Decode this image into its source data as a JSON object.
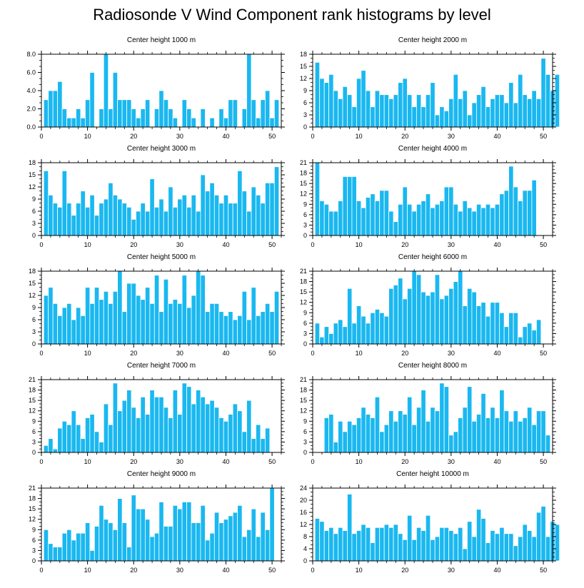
{
  "page": {
    "title": "Radiosonde V Wind Component rank histograms by level"
  },
  "colors": {
    "bar": "#1ab8f0",
    "bar_stroke": "#ffffff",
    "axis": "#000000"
  },
  "chart_data": [
    {
      "type": "bar",
      "title": "Center height 1000 m",
      "xlim": [
        0,
        52
      ],
      "ylim": [
        0,
        8
      ],
      "xticks": [
        0,
        10,
        20,
        30,
        40,
        50
      ],
      "yticks": [
        0,
        2,
        4,
        6,
        8
      ],
      "ytick_labels": [
        "0.0",
        "2.0",
        "4.0",
        "6.0",
        "8.0"
      ],
      "values": [
        3,
        4,
        4,
        5,
        2,
        1,
        1,
        2,
        1,
        3,
        6,
        0,
        2,
        8,
        2,
        6,
        3,
        3,
        3,
        2,
        1,
        2,
        3,
        0,
        2,
        4,
        3,
        2,
        1,
        0,
        3,
        2,
        1,
        0,
        2,
        0,
        1,
        0,
        2,
        1,
        3,
        3,
        0,
        2,
        8,
        3,
        1,
        3,
        4,
        1,
        3
      ]
    },
    {
      "type": "bar",
      "title": "Center height 2000 m",
      "xlim": [
        0,
        52
      ],
      "ylim": [
        0,
        18
      ],
      "xticks": [
        0,
        10,
        20,
        30,
        40,
        50
      ],
      "yticks": [
        0,
        3,
        6,
        9,
        12,
        15,
        18
      ],
      "ytick_labels": [
        "0",
        "3",
        "6",
        "9",
        "12",
        "15",
        "18"
      ],
      "values": [
        16,
        12,
        11,
        13,
        9,
        7,
        10,
        8,
        5,
        12,
        14,
        9,
        5,
        9,
        8,
        8,
        7,
        8,
        11,
        12,
        8,
        5,
        8,
        5,
        8,
        11,
        3,
        5,
        4,
        7,
        13,
        7,
        9,
        3,
        6,
        8,
        10,
        5,
        7,
        8,
        8,
        6,
        11,
        6,
        13,
        8,
        7,
        9,
        7,
        17,
        13,
        9,
        13
      ]
    },
    {
      "type": "bar",
      "title": "Center height 3000 m",
      "xlim": [
        0,
        52
      ],
      "ylim": [
        0,
        18
      ],
      "xticks": [
        0,
        10,
        20,
        30,
        40,
        50
      ],
      "yticks": [
        0,
        3,
        6,
        9,
        12,
        15,
        18
      ],
      "ytick_labels": [
        "0",
        "3",
        "6",
        "9",
        "12",
        "15",
        "18"
      ],
      "values": [
        16,
        10,
        8,
        7,
        16,
        8,
        5,
        8,
        11,
        7,
        10,
        5,
        8,
        9,
        13,
        10,
        9,
        8,
        7,
        4,
        6,
        8,
        6,
        14,
        7,
        9,
        6,
        12,
        7,
        9,
        10,
        7,
        10,
        6,
        15,
        11,
        13,
        10,
        8,
        10,
        8,
        8,
        16,
        11,
        6,
        12,
        10,
        8,
        13,
        13,
        17
      ]
    },
    {
      "type": "bar",
      "title": "Center height 4000 m",
      "xlim": [
        0,
        52
      ],
      "ylim": [
        0,
        21
      ],
      "xticks": [
        0,
        10,
        20,
        30,
        40,
        50
      ],
      "yticks": [
        0,
        3,
        6,
        9,
        12,
        15,
        18,
        21
      ],
      "ytick_labels": [
        "0",
        "3",
        "6",
        "9",
        "12",
        "15",
        "18",
        "21"
      ],
      "values": [
        21,
        10,
        9,
        7,
        7,
        10,
        17,
        17,
        17,
        10,
        8,
        11,
        12,
        10,
        13,
        13,
        7,
        4,
        9,
        14,
        9,
        7,
        9,
        10,
        12,
        8,
        9,
        10,
        14,
        14,
        9,
        7,
        10,
        8,
        7,
        9,
        8,
        9,
        8,
        9,
        12,
        13,
        20,
        14,
        10,
        13,
        13,
        16
      ]
    },
    {
      "type": "bar",
      "title": "Center height 5000 m",
      "xlim": [
        0,
        52
      ],
      "ylim": [
        0,
        18
      ],
      "xticks": [
        0,
        10,
        20,
        30,
        40,
        50
      ],
      "yticks": [
        0,
        3,
        6,
        9,
        12,
        15,
        18
      ],
      "ytick_labels": [
        "0",
        "3",
        "6",
        "9",
        "12",
        "15",
        "18"
      ],
      "values": [
        12,
        14,
        10,
        7,
        9,
        10,
        6,
        9,
        7,
        14,
        10,
        14,
        11,
        13,
        10,
        13,
        18,
        8,
        15,
        15,
        12,
        11,
        14,
        10,
        17,
        8,
        16,
        10,
        11,
        10,
        17,
        9,
        12,
        18,
        17,
        8,
        10,
        10,
        8,
        7,
        8,
        6,
        7,
        13,
        6,
        14,
        7,
        8,
        10,
        8,
        13
      ]
    },
    {
      "type": "bar",
      "title": "Center height 6000 m",
      "xlim": [
        0,
        52
      ],
      "ylim": [
        0,
        21
      ],
      "xticks": [
        0,
        10,
        20,
        30,
        40,
        50
      ],
      "yticks": [
        0,
        3,
        6,
        9,
        12,
        15,
        18,
        21
      ],
      "ytick_labels": [
        "0",
        "3",
        "6",
        "9",
        "12",
        "15",
        "18",
        "21"
      ],
      "values": [
        6,
        2,
        5,
        3,
        6,
        7,
        5,
        16,
        6,
        11,
        8,
        6,
        9,
        10,
        9,
        8,
        16,
        17,
        19,
        13,
        16,
        21,
        20,
        15,
        14,
        15,
        20,
        13,
        14,
        16,
        18,
        21,
        11,
        16,
        15,
        11,
        12,
        8,
        12,
        12,
        9,
        5,
        9,
        9,
        2,
        5,
        6,
        4,
        7
      ]
    },
    {
      "type": "bar",
      "title": "Center height 7000 m",
      "xlim": [
        0,
        52
      ],
      "ylim": [
        0,
        21
      ],
      "xticks": [
        0,
        10,
        20,
        30,
        40,
        50
      ],
      "yticks": [
        0,
        3,
        6,
        9,
        12,
        15,
        18,
        21
      ],
      "ytick_labels": [
        "0",
        "3",
        "6",
        "9",
        "12",
        "15",
        "18",
        "21"
      ],
      "values": [
        2,
        4,
        1,
        7,
        9,
        8,
        12,
        8,
        4,
        10,
        11,
        6,
        3,
        14,
        8,
        20,
        12,
        15,
        18,
        13,
        10,
        16,
        11,
        18,
        16,
        16,
        13,
        10,
        18,
        11,
        20,
        19,
        14,
        18,
        16,
        14,
        15,
        13,
        10,
        9,
        11,
        14,
        12,
        6,
        15,
        4,
        8,
        4,
        7
      ]
    },
    {
      "type": "bar",
      "title": "Center height 8000 m",
      "xlim": [
        0,
        52
      ],
      "ylim": [
        0,
        21
      ],
      "xticks": [
        0,
        10,
        20,
        30,
        40,
        50
      ],
      "yticks": [
        0,
        3,
        6,
        9,
        12,
        15,
        18,
        21
      ],
      "ytick_labels": [
        "0",
        "3",
        "6",
        "9",
        "12",
        "15",
        "18",
        "21"
      ],
      "values": [
        0,
        0,
        10,
        11,
        3,
        9,
        6,
        9,
        8,
        10,
        13,
        11,
        10,
        16,
        6,
        8,
        12,
        9,
        12,
        11,
        16,
        8,
        13,
        18,
        9,
        13,
        12,
        20,
        19,
        5,
        6,
        10,
        13,
        19,
        9,
        11,
        17,
        10,
        13,
        10,
        18,
        12,
        9,
        12,
        9,
        10,
        13,
        8,
        12,
        12,
        5
      ]
    },
    {
      "type": "bar",
      "title": "Center height 9000 m",
      "xlim": [
        0,
        52
      ],
      "ylim": [
        0,
        21
      ],
      "xticks": [
        0,
        10,
        20,
        30,
        40,
        50
      ],
      "yticks": [
        0,
        3,
        6,
        9,
        12,
        15,
        18,
        21
      ],
      "ytick_labels": [
        "0",
        "3",
        "6",
        "9",
        "12",
        "15",
        "18",
        "21"
      ],
      "values": [
        9,
        5,
        4,
        4,
        8,
        9,
        6,
        8,
        8,
        11,
        3,
        10,
        16,
        12,
        11,
        9,
        18,
        11,
        4,
        19,
        15,
        15,
        12,
        7,
        8,
        17,
        10,
        10,
        16,
        15,
        17,
        17,
        11,
        11,
        16,
        6,
        8,
        14,
        11,
        12,
        13,
        14,
        16,
        7,
        9,
        15,
        7,
        14,
        9,
        21
      ]
    },
    {
      "type": "bar",
      "title": "Center height 10000 m",
      "xlim": [
        0,
        52
      ],
      "ylim": [
        0,
        24
      ],
      "xticks": [
        0,
        10,
        20,
        30,
        40,
        50
      ],
      "yticks": [
        0,
        4,
        8,
        12,
        16,
        20,
        24
      ],
      "ytick_labels": [
        "0",
        "4",
        "8",
        "12",
        "16",
        "20",
        "24"
      ],
      "values": [
        14,
        13,
        10,
        11,
        9,
        11,
        10,
        22,
        9,
        10,
        12,
        11,
        6,
        11,
        11,
        12,
        11,
        12,
        9,
        7,
        15,
        7,
        11,
        10,
        15,
        7,
        8,
        11,
        11,
        10,
        9,
        11,
        4,
        13,
        8,
        17,
        14,
        6,
        10,
        9,
        11,
        9,
        9,
        5,
        8,
        12,
        10,
        8,
        16,
        18,
        8,
        13,
        12
      ]
    }
  ]
}
